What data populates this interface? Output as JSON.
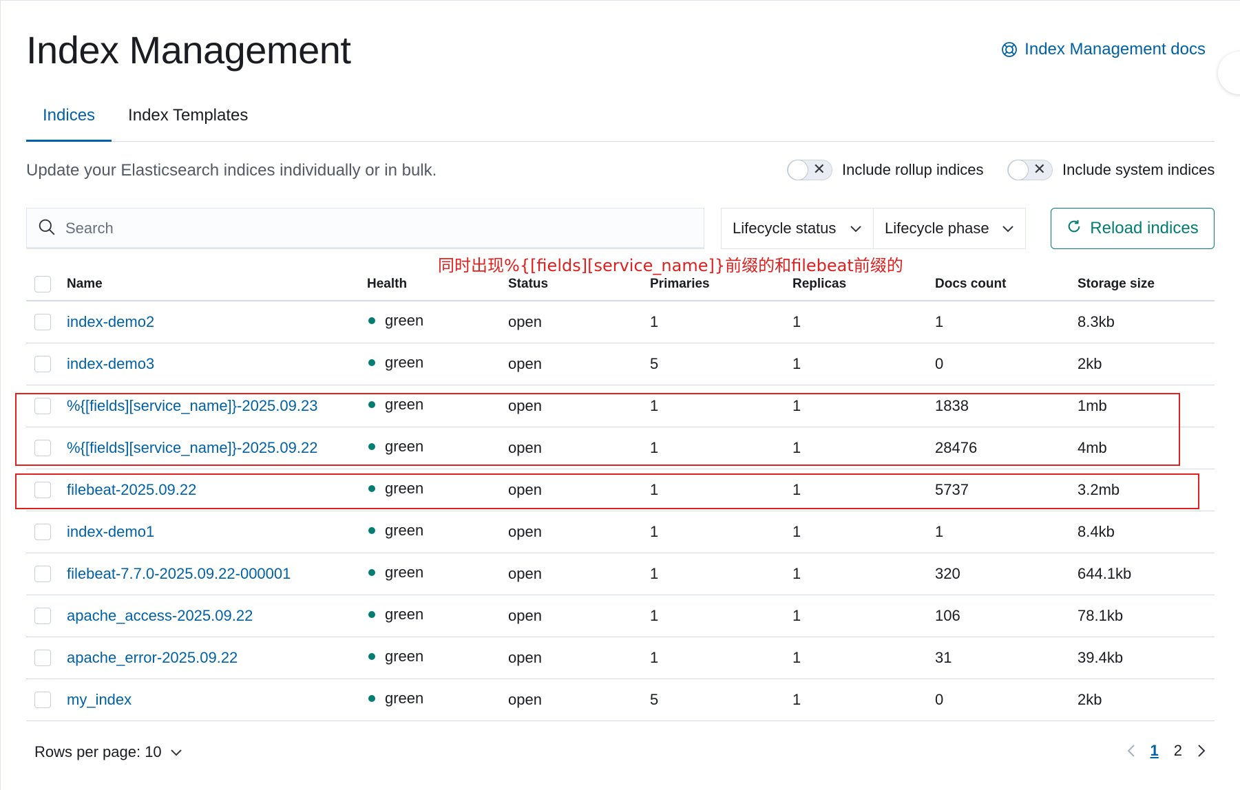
{
  "page": {
    "title": "Index Management",
    "docs_link": "Index Management docs"
  },
  "tabs": [
    {
      "label": "Indices",
      "active": true
    },
    {
      "label": "Index Templates",
      "active": false
    }
  ],
  "description": "Update your Elasticsearch indices individually or in bulk.",
  "toggles": {
    "rollup": {
      "label": "Include rollup indices",
      "on": false
    },
    "system": {
      "label": "Include system indices",
      "on": false
    }
  },
  "search": {
    "placeholder": "Search",
    "value": ""
  },
  "filters": {
    "lifecycle_status": "Lifecycle status",
    "lifecycle_phase": "Lifecycle phase"
  },
  "reload_button": "Reload indices",
  "annotation": "同时出现%{[fields][service_name]}前缀的和filebeat前缀的",
  "table": {
    "columns": [
      "Name",
      "Health",
      "Status",
      "Primaries",
      "Replicas",
      "Docs count",
      "Storage size"
    ],
    "rows": [
      {
        "name": "index-demo2",
        "health": "green",
        "status": "open",
        "primaries": "1",
        "replicas": "1",
        "docs": "1",
        "size": "8.3kb"
      },
      {
        "name": "index-demo3",
        "health": "green",
        "status": "open",
        "primaries": "5",
        "replicas": "1",
        "docs": "0",
        "size": "2kb"
      },
      {
        "name": "%{[fields][service_name]}-2025.09.23",
        "health": "green",
        "status": "open",
        "primaries": "1",
        "replicas": "1",
        "docs": "1838",
        "size": "1mb"
      },
      {
        "name": "%{[fields][service_name]}-2025.09.22",
        "health": "green",
        "status": "open",
        "primaries": "1",
        "replicas": "1",
        "docs": "28476",
        "size": "4mb"
      },
      {
        "name": "filebeat-2025.09.22",
        "health": "green",
        "status": "open",
        "primaries": "1",
        "replicas": "1",
        "docs": "5737",
        "size": "3.2mb"
      },
      {
        "name": "index-demo1",
        "health": "green",
        "status": "open",
        "primaries": "1",
        "replicas": "1",
        "docs": "1",
        "size": "8.4kb"
      },
      {
        "name": "filebeat-7.7.0-2025.09.22-000001",
        "health": "green",
        "status": "open",
        "primaries": "1",
        "replicas": "1",
        "docs": "320",
        "size": "644.1kb"
      },
      {
        "name": "apache_access-2025.09.22",
        "health": "green",
        "status": "open",
        "primaries": "1",
        "replicas": "1",
        "docs": "106",
        "size": "78.1kb"
      },
      {
        "name": "apache_error-2025.09.22",
        "health": "green",
        "status": "open",
        "primaries": "1",
        "replicas": "1",
        "docs": "31",
        "size": "39.4kb"
      },
      {
        "name": "my_index",
        "health": "green",
        "status": "open",
        "primaries": "5",
        "replicas": "1",
        "docs": "0",
        "size": "2kb"
      }
    ]
  },
  "footer": {
    "rows_per_page": "Rows per page: 10",
    "pages": [
      "1",
      "2"
    ],
    "current_page": "1"
  },
  "colors": {
    "link": "#0061a6",
    "success": "#017d73",
    "annotation": "#e0201f"
  }
}
